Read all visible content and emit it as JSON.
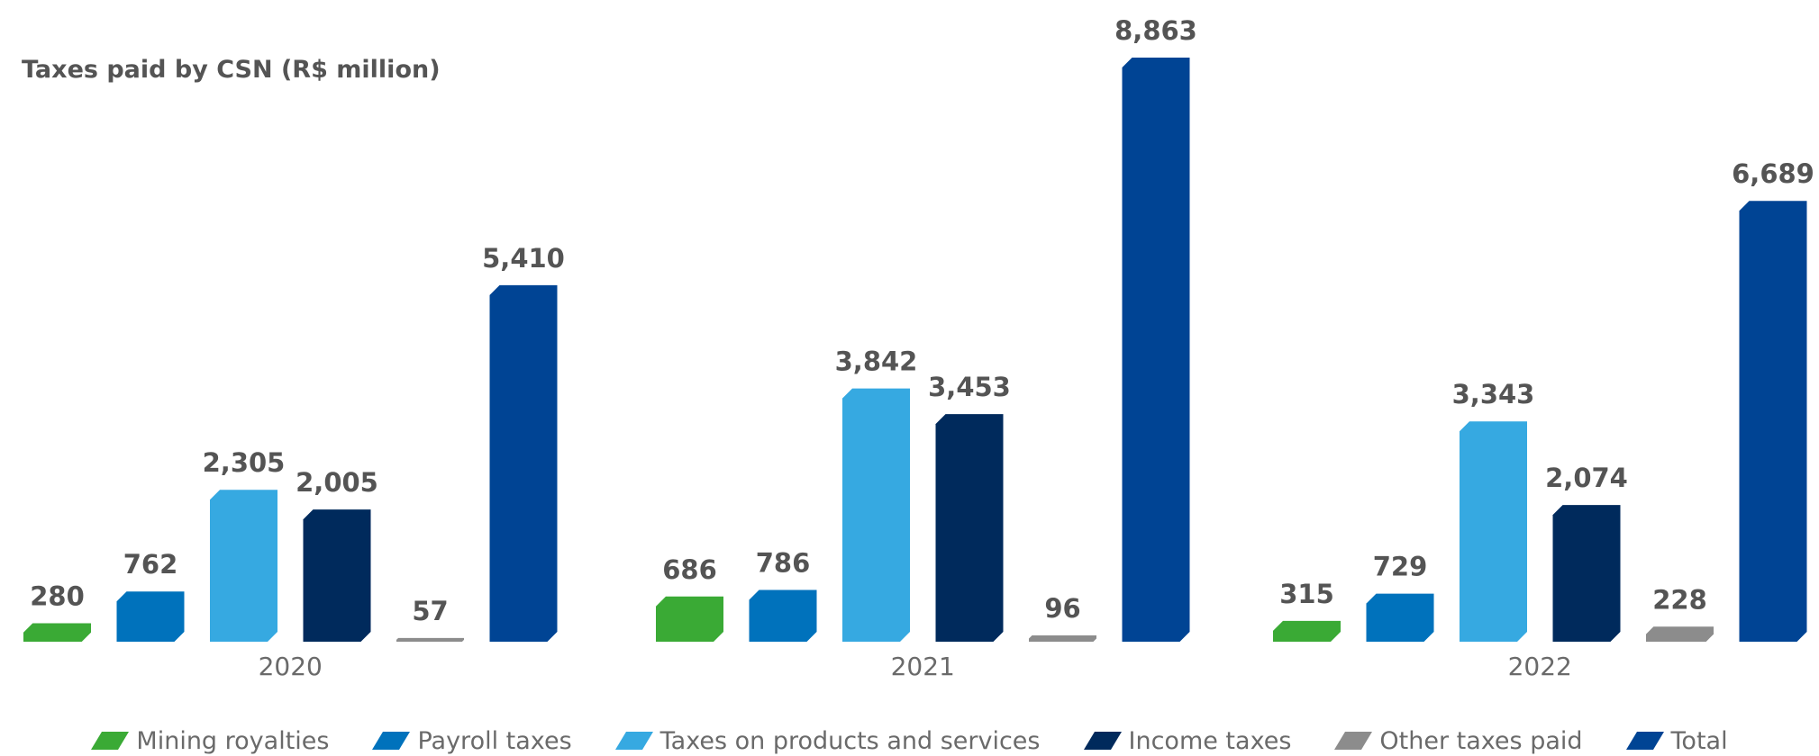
{
  "chart_data": {
    "type": "bar",
    "title": "Taxes paid by CSN (R$ million)",
    "categories": [
      "2020",
      "2021",
      "2022"
    ],
    "series": [
      {
        "name": "Mining royalties",
        "color": "#3aaa35",
        "values": [
          280,
          686,
          315
        ]
      },
      {
        "name": "Payroll taxes",
        "color": "#0072bc",
        "values": [
          762,
          786,
          729
        ]
      },
      {
        "name": "Taxes on products and services",
        "color": "#36a9e1",
        "values": [
          2305,
          3842,
          3343
        ]
      },
      {
        "name": "Income taxes",
        "color": "#002a5c",
        "values": [
          2005,
          3453,
          2074
        ]
      },
      {
        "name": "Other taxes paid",
        "color": "#8c8c8c",
        "values": [
          57,
          96,
          228
        ]
      },
      {
        "name": "Total",
        "color": "#004494",
        "values": [
          5410,
          8863,
          6689
        ]
      }
    ],
    "value_labels": [
      [
        "280",
        "762",
        "2,305",
        "2,005",
        "57",
        "5,410"
      ],
      [
        "686",
        "786",
        "3,842",
        "3,453",
        "96",
        "8,863"
      ],
      [
        "315",
        "729",
        "3,343",
        "2,074",
        "228",
        "6,689"
      ]
    ],
    "ylim": [
      0,
      8863
    ],
    "grid": false,
    "legend_position": "bottom"
  }
}
